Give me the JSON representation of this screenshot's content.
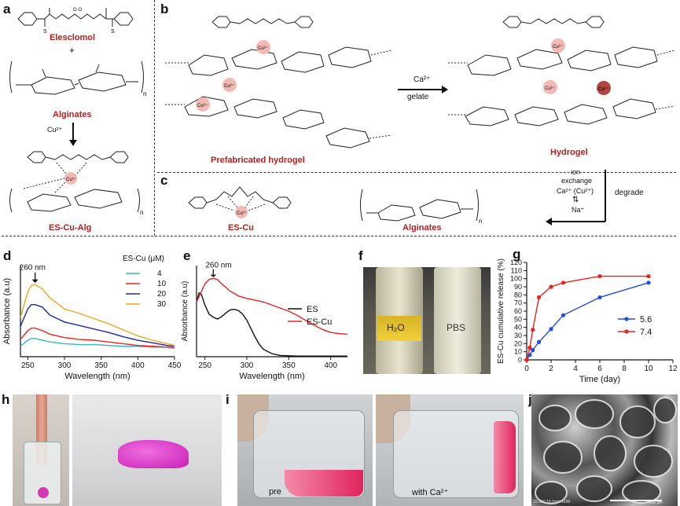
{
  "panels": {
    "a": "a",
    "b": "b",
    "c": "c",
    "d": "d",
    "e": "e",
    "f": "f",
    "g": "g",
    "h": "h",
    "i": "i",
    "j": "j"
  },
  "panel_a": {
    "elesclomol": "Elesclomol",
    "plus": "+",
    "alginates": "Alginates",
    "cu_label": "Cu²⁺",
    "cu_ion": "Cu²⁺",
    "n_sub": "n",
    "es_cu_alg": "ES-Cu-Alg"
  },
  "panel_b": {
    "prefab": "Prefabricated hydrogel",
    "hydrogel": "Hydrogel",
    "ca": "Ca²⁺",
    "gelate": "gelate",
    "cu_ion": "Cu²⁺",
    "ca_ion": "Ca²⁺",
    "ion_exchange_1": "ion",
    "ion_exchange_2": "exchange",
    "ion_exchange_3": "Ca²⁺ (Cu²⁺)",
    "na": "Na⁺",
    "degrade": "degrade"
  },
  "panel_c": {
    "es_cu": "ES-Cu",
    "alginates": "Alginates",
    "n_sub": "n",
    "cu_ion": "Cu²⁺"
  },
  "chart_d": {
    "type": "line",
    "ylabel": "Absorbance (a.u)",
    "xlabel": "Wavelength (nm)",
    "annotation": "260 nm",
    "legend_title": "ES-Cu (μM)",
    "xlim": [
      240,
      450
    ],
    "xticks": [
      "250",
      "300",
      "350",
      "400",
      "450"
    ],
    "series": [
      {
        "name": "4",
        "color": "#35b6c4",
        "x": [
          240,
          250,
          255,
          260,
          270,
          280,
          300,
          320,
          340,
          360,
          380,
          400,
          420,
          440,
          450
        ],
        "y": [
          0.12,
          0.19,
          0.21,
          0.21,
          0.19,
          0.17,
          0.15,
          0.14,
          0.14,
          0.13,
          0.12,
          0.12,
          0.11,
          0.11,
          0.1
        ]
      },
      {
        "name": "10",
        "color": "#e8241d",
        "x": [
          240,
          250,
          255,
          260,
          270,
          280,
          300,
          320,
          340,
          360,
          380,
          400,
          420,
          440,
          450
        ],
        "y": [
          0.2,
          0.3,
          0.33,
          0.33,
          0.3,
          0.26,
          0.22,
          0.2,
          0.19,
          0.17,
          0.15,
          0.13,
          0.12,
          0.11,
          0.1
        ]
      },
      {
        "name": "20",
        "color": "#1c28a8",
        "x": [
          240,
          250,
          255,
          260,
          270,
          280,
          300,
          320,
          340,
          360,
          380,
          400,
          420,
          440,
          450
        ],
        "y": [
          0.35,
          0.55,
          0.6,
          0.6,
          0.57,
          0.48,
          0.4,
          0.36,
          0.32,
          0.28,
          0.23,
          0.19,
          0.16,
          0.13,
          0.12
        ]
      },
      {
        "name": "30",
        "color": "#f3a41b",
        "x": [
          240,
          250,
          255,
          260,
          270,
          280,
          300,
          320,
          340,
          360,
          380,
          400,
          420,
          440,
          450
        ],
        "y": [
          0.45,
          0.75,
          0.82,
          0.83,
          0.78,
          0.68,
          0.55,
          0.5,
          0.44,
          0.38,
          0.31,
          0.24,
          0.19,
          0.15,
          0.13
        ]
      }
    ]
  },
  "chart_e": {
    "type": "line",
    "ylabel": "Absorbance (a.u)",
    "xlabel": "Wavelength (nm)",
    "annotation": "260 nm",
    "xlim": [
      240,
      420
    ],
    "xticks": [
      "250",
      "300",
      "350",
      "400"
    ],
    "series": [
      {
        "name": "ES",
        "color": "#111111",
        "x": [
          240,
          243,
          246,
          250,
          255,
          260,
          265,
          270,
          275,
          280,
          285,
          290,
          295,
          300,
          305,
          310,
          315,
          320,
          330,
          340,
          360,
          380,
          400,
          420
        ],
        "y": [
          0.9,
          1.05,
          1.02,
          0.85,
          0.7,
          0.65,
          0.62,
          0.66,
          0.72,
          0.77,
          0.78,
          0.76,
          0.7,
          0.6,
          0.46,
          0.32,
          0.2,
          0.12,
          0.05,
          0.02,
          0.01,
          0.01,
          0.01,
          0.01
        ]
      },
      {
        "name": "ES-Cu",
        "color": "#e8241d",
        "x": [
          240,
          245,
          250,
          255,
          260,
          265,
          270,
          280,
          290,
          300,
          310,
          320,
          330,
          340,
          350,
          360,
          370,
          380,
          390,
          400,
          410,
          420
        ],
        "y": [
          0.9,
          1.05,
          1.2,
          1.27,
          1.29,
          1.27,
          1.2,
          1.08,
          1.0,
          0.96,
          0.93,
          0.9,
          0.85,
          0.8,
          0.75,
          0.68,
          0.6,
          0.52,
          0.45,
          0.4,
          0.38,
          0.37
        ]
      }
    ]
  },
  "panel_f": {
    "h2o": "H₂O",
    "pbs": "PBS"
  },
  "chart_g": {
    "type": "line",
    "ylabel": "ES-Cu cumulative release (%)",
    "xlabel": "Time (day)",
    "xlim": [
      0,
      12
    ],
    "ylim": [
      0,
      120
    ],
    "xticks": [
      "0",
      "2",
      "4",
      "6",
      "8",
      "10",
      "12"
    ],
    "yticks": [
      "0",
      "10",
      "20",
      "30",
      "40",
      "50",
      "60",
      "70",
      "80",
      "90",
      "100",
      "110",
      "120"
    ],
    "series": [
      {
        "name": "5.6",
        "color": "#1f4fe0",
        "x": [
          0,
          0.25,
          0.5,
          1,
          2,
          3,
          6,
          10
        ],
        "y": [
          0,
          6,
          12,
          22,
          38,
          55,
          77,
          95
        ]
      },
      {
        "name": "7.4",
        "color": "#e8241d",
        "x": [
          0,
          0.25,
          0.5,
          1,
          2,
          3,
          6,
          10
        ],
        "y": [
          0,
          15,
          37,
          77,
          90,
          95,
          103,
          103
        ]
      }
    ]
  },
  "panel_i": {
    "pre": "pre",
    "with_ca": "with Ca²⁺"
  },
  "panel_j": {
    "sem_info": "15.0kV 10.1mm x100",
    "scale": "200 μm"
  }
}
